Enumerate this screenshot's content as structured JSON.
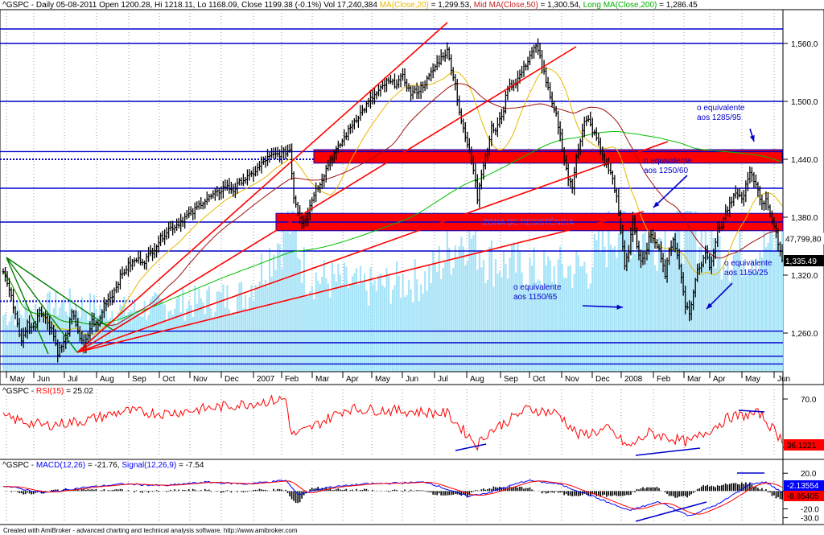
{
  "header": {
    "ticker": "^GSPC - Daily 05-08-2011 Open 1200.28, Hi 1218.11, Lo 1168.09, Close 1199.38 (-0.1%) Vol 17,240,384",
    "ma20_label": "MA(Close,20)",
    "ma20_value": " = 1,299.53, ",
    "ma50_label": "Mid MA(Close,50)",
    "ma50_value": " = 1,300.54, ",
    "ma200_label": "Long MA(Close,200)",
    "ma200_value": " = 1,286.45"
  },
  "rsi_header": {
    "prefix": "^GSPC - ",
    "label": "RSI(15)",
    "value": " = 25.02"
  },
  "macd_header": {
    "prefix": "^GSPC - ",
    "macd_label": "MACD(12,26)",
    "macd_value": " = -21.76, ",
    "signal_label": "Signal(12,26,9)",
    "signal_value": " = -7.54"
  },
  "footer": "Created with AmiBroker - advanced charting and technical analysis software. http://www.amibroker.com",
  "colors": {
    "price": "#000000",
    "ma20": "#e8b800",
    "ma50": "#a01010",
    "ma200": "#00c000",
    "volume": "#a8e4f8",
    "hline": "#0000cc",
    "trend": "#ff0000",
    "zone": "#ff0000",
    "rsi": "#ff0000",
    "macd": "#0000ff",
    "signal": "#ff0000",
    "annot": "#0000cc"
  },
  "chart_data": [
    {
      "type": "line",
      "title": "^GSPC Daily",
      "x_ticks": [
        "May",
        "Jun",
        "Jul",
        "Aug",
        "Sep",
        "Oct",
        "Nov",
        "Dec",
        "2007",
        "Feb",
        "Mar",
        "Apr",
        "May",
        "Jun",
        "Jul",
        "Aug",
        "Sep",
        "Oct",
        "Nov",
        "Dec",
        "2008",
        "Feb",
        "Mar",
        "Apr",
        "May",
        "Jun"
      ],
      "y_ticks": [
        "1,560.0",
        "1,500.0",
        "1,440.0",
        "1,380.0",
        "1,320.0",
        "1,260.0"
      ],
      "ylim": [
        1220,
        1595
      ],
      "price_keypoints": [
        [
          0,
          1325
        ],
        [
          3,
          1305
        ],
        [
          6,
          1280
        ],
        [
          9,
          1250
        ],
        [
          12,
          1270
        ],
        [
          15,
          1265
        ],
        [
          18,
          1285
        ],
        [
          21,
          1275
        ],
        [
          24,
          1265
        ],
        [
          27,
          1240
        ],
        [
          30,
          1250
        ],
        [
          32,
          1262
        ],
        [
          34,
          1280
        ],
        [
          36,
          1270
        ],
        [
          38,
          1255
        ],
        [
          40,
          1245
        ],
        [
          42,
          1258
        ],
        [
          44,
          1272
        ],
        [
          47,
          1268
        ],
        [
          50,
          1290
        ],
        [
          54,
          1300
        ],
        [
          58,
          1318
        ],
        [
          62,
          1330
        ],
        [
          66,
          1336
        ],
        [
          70,
          1335
        ],
        [
          74,
          1345
        ],
        [
          78,
          1358
        ],
        [
          82,
          1368
        ],
        [
          86,
          1372
        ],
        [
          90,
          1380
        ],
        [
          94,
          1385
        ],
        [
          98,
          1395
        ],
        [
          102,
          1400
        ],
        [
          106,
          1405
        ],
        [
          110,
          1412
        ],
        [
          114,
          1408
        ],
        [
          118,
          1418
        ],
        [
          122,
          1422
        ],
        [
          126,
          1430
        ],
        [
          130,
          1440
        ],
        [
          134,
          1444
        ],
        [
          138,
          1446
        ],
        [
          142,
          1450
        ],
        [
          144,
          1402
        ],
        [
          146,
          1386
        ],
        [
          148,
          1376
        ],
        [
          150,
          1380
        ],
        [
          152,
          1392
        ],
        [
          154,
          1405
        ],
        [
          158,
          1420
        ],
        [
          162,
          1440
        ],
        [
          166,
          1452
        ],
        [
          170,
          1466
        ],
        [
          174,
          1480
        ],
        [
          178,
          1490
        ],
        [
          182,
          1502
        ],
        [
          186,
          1510
        ],
        [
          190,
          1520
        ],
        [
          194,
          1518
        ],
        [
          198,
          1525
        ],
        [
          202,
          1508
        ],
        [
          206,
          1512
        ],
        [
          210,
          1522
        ],
        [
          214,
          1536
        ],
        [
          218,
          1548
        ],
        [
          220,
          1552
        ],
        [
          222,
          1535
        ],
        [
          224,
          1518
        ],
        [
          226,
          1490
        ],
        [
          228,
          1470
        ],
        [
          230,
          1455
        ],
        [
          232,
          1440
        ],
        [
          234,
          1420
        ],
        [
          235,
          1400
        ],
        [
          236,
          1415
        ],
        [
          238,
          1435
        ],
        [
          240,
          1452
        ],
        [
          242,
          1472
        ],
        [
          244,
          1470
        ],
        [
          246,
          1480
        ],
        [
          248,
          1492
        ],
        [
          250,
          1515
        ],
        [
          254,
          1520
        ],
        [
          258,
          1534
        ],
        [
          262,
          1552
        ],
        [
          264,
          1556
        ],
        [
          266,
          1546
        ],
        [
          268,
          1530
        ],
        [
          270,
          1512
        ],
        [
          272,
          1495
        ],
        [
          274,
          1485
        ],
        [
          276,
          1465
        ],
        [
          278,
          1440
        ],
        [
          280,
          1420
        ],
        [
          282,
          1410
        ],
        [
          284,
          1445
        ],
        [
          286,
          1460
        ],
        [
          288,
          1478
        ],
        [
          290,
          1480
        ],
        [
          292,
          1470
        ],
        [
          294,
          1462
        ],
        [
          296,
          1450
        ],
        [
          298,
          1436
        ],
        [
          300,
          1430
        ],
        [
          302,
          1420
        ],
        [
          304,
          1400
        ],
        [
          306,
          1365
        ],
        [
          308,
          1330
        ],
        [
          310,
          1345
        ],
        [
          312,
          1380
        ],
        [
          314,
          1350
        ],
        [
          316,
          1332
        ],
        [
          318,
          1340
        ],
        [
          320,
          1358
        ],
        [
          322,
          1360
        ],
        [
          324,
          1352
        ],
        [
          326,
          1340
        ],
        [
          328,
          1320
        ],
        [
          330,
          1345
        ],
        [
          332,
          1358
        ],
        [
          334,
          1340
        ],
        [
          336,
          1318
        ],
        [
          338,
          1290
        ],
        [
          340,
          1280
        ],
        [
          342,
          1302
        ],
        [
          344,
          1326
        ],
        [
          346,
          1332
        ],
        [
          348,
          1345
        ],
        [
          350,
          1330
        ],
        [
          352,
          1345
        ],
        [
          354,
          1366
        ],
        [
          356,
          1372
        ],
        [
          358,
          1385
        ],
        [
          360,
          1392
        ],
        [
          362,
          1400
        ],
        [
          364,
          1405
        ],
        [
          366,
          1398
        ],
        [
          368,
          1412
        ],
        [
          370,
          1425
        ],
        [
          372,
          1418
        ],
        [
          374,
          1410
        ],
        [
          376,
          1392
        ],
        [
          378,
          1400
        ],
        [
          380,
          1385
        ],
        [
          382,
          1368
        ],
        [
          384,
          1355
        ],
        [
          386,
          1335
        ]
      ],
      "volume_keypoints": [
        [
          0,
          0.35
        ],
        [
          30,
          0.42
        ],
        [
          60,
          0.38
        ],
        [
          90,
          0.42
        ],
        [
          120,
          0.48
        ],
        [
          143,
          0.95
        ],
        [
          150,
          0.6
        ],
        [
          180,
          0.52
        ],
        [
          210,
          0.58
        ],
        [
          230,
          0.88
        ],
        [
          240,
          0.7
        ],
        [
          265,
          0.62
        ],
        [
          290,
          0.65
        ],
        [
          306,
          0.95
        ],
        [
          320,
          0.82
        ],
        [
          340,
          0.9
        ],
        [
          360,
          0.72
        ],
        [
          386,
          0.82
        ]
      ],
      "annotations": [
        "ZONA DE RESISTÊNCIA",
        "o equivalente aos 1285/95",
        "o equivalente aos 1250/60",
        "o equivalente aos 1150/25",
        "o equivalente aos 1150/65"
      ],
      "right_labels": [
        "47,799,80",
        "1,335.49"
      ],
      "horizontal_levels": [
        1575,
        1560,
        1500,
        1448,
        1410,
        1375,
        1345,
        1262,
        1250,
        1236,
        1228
      ]
    },
    {
      "type": "line",
      "title": "RSI(15)",
      "y_ticks": [
        "70.0",
        "30.0"
      ],
      "ylim": [
        22,
        78
      ],
      "right_label": "36.1221",
      "keypoints": [
        [
          0,
          55
        ],
        [
          20,
          48
        ],
        [
          40,
          52
        ],
        [
          60,
          60
        ],
        [
          80,
          58
        ],
        [
          100,
          62
        ],
        [
          120,
          66
        ],
        [
          140,
          70
        ],
        [
          143,
          40
        ],
        [
          150,
          44
        ],
        [
          170,
          62
        ],
        [
          200,
          60
        ],
        [
          220,
          58
        ],
        [
          235,
          32
        ],
        [
          240,
          42
        ],
        [
          260,
          62
        ],
        [
          275,
          58
        ],
        [
          285,
          40
        ],
        [
          300,
          45
        ],
        [
          310,
          30
        ],
        [
          320,
          42
        ],
        [
          340,
          34
        ],
        [
          360,
          55
        ],
        [
          375,
          58
        ],
        [
          386,
          36
        ]
      ]
    },
    {
      "type": "line",
      "title": "MACD(12,26)",
      "y_ticks": [
        "20.0",
        "0.0",
        "-20.0",
        "-30.0"
      ],
      "ylim": [
        -34,
        22
      ],
      "right_labels": [
        "-2.13554",
        "-8.85405"
      ],
      "keypoints": [
        [
          0,
          6
        ],
        [
          20,
          -2
        ],
        [
          40,
          4
        ],
        [
          60,
          8
        ],
        [
          80,
          6
        ],
        [
          100,
          10
        ],
        [
          120,
          8
        ],
        [
          140,
          12
        ],
        [
          146,
          -4
        ],
        [
          160,
          4
        ],
        [
          180,
          8
        ],
        [
          210,
          10
        ],
        [
          230,
          -6
        ],
        [
          240,
          -2
        ],
        [
          260,
          12
        ],
        [
          275,
          8
        ],
        [
          290,
          -4
        ],
        [
          310,
          -22
        ],
        [
          325,
          -12
        ],
        [
          340,
          -28
        ],
        [
          355,
          -14
        ],
        [
          370,
          8
        ],
        [
          378,
          10
        ],
        [
          386,
          -2
        ]
      ]
    }
  ]
}
